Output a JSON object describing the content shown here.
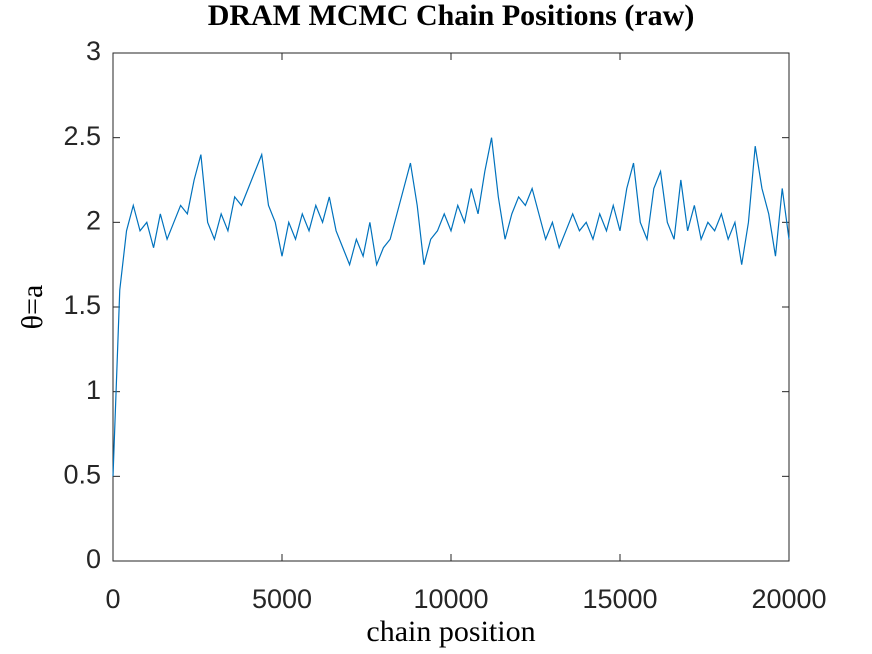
{
  "chart_data": {
    "type": "line",
    "title": "DRAM MCMC Chain Positions (raw)",
    "x_label": "chain position",
    "y_label": "θ=a",
    "x": [
      0,
      200,
      400,
      600,
      800,
      1000,
      1200,
      1400,
      1600,
      1800,
      2000,
      2200,
      2400,
      2600,
      2800,
      3000,
      3200,
      3400,
      3600,
      3800,
      4000,
      4200,
      4400,
      4600,
      4800,
      5000,
      5200,
      5400,
      5600,
      5800,
      6000,
      6200,
      6400,
      6600,
      6800,
      7000,
      7200,
      7400,
      7600,
      7800,
      8000,
      8200,
      8400,
      8600,
      8800,
      9000,
      9200,
      9400,
      9600,
      9800,
      10000,
      10200,
      10400,
      10600,
      10800,
      11000,
      11200,
      11400,
      11600,
      11800,
      12000,
      12200,
      12400,
      12600,
      12800,
      13000,
      13200,
      13400,
      13600,
      13800,
      14000,
      14200,
      14400,
      14600,
      14800,
      15000,
      15200,
      15400,
      15600,
      15800,
      16000,
      16200,
      16400,
      16600,
      16800,
      17000,
      17200,
      17400,
      17600,
      17800,
      18000,
      18200,
      18400,
      18600,
      18800,
      19000,
      19200,
      19400,
      19600,
      19800,
      20000
    ],
    "values": [
      0.5,
      1.6,
      1.95,
      2.1,
      1.95,
      2.0,
      1.85,
      2.05,
      1.9,
      2.0,
      2.1,
      2.05,
      2.25,
      2.4,
      2.0,
      1.9,
      2.05,
      1.95,
      2.15,
      2.1,
      2.2,
      2.3,
      2.4,
      2.1,
      2.0,
      1.8,
      2.0,
      1.9,
      2.05,
      1.95,
      2.1,
      2.0,
      2.15,
      1.95,
      1.85,
      1.75,
      1.9,
      1.8,
      2.0,
      1.75,
      1.85,
      1.9,
      2.05,
      2.2,
      2.35,
      2.1,
      1.75,
      1.9,
      1.95,
      2.05,
      1.95,
      2.1,
      2.0,
      2.2,
      2.05,
      2.3,
      2.5,
      2.15,
      1.9,
      2.05,
      2.15,
      2.1,
      2.2,
      2.05,
      1.9,
      2.0,
      1.85,
      1.95,
      2.05,
      1.95,
      2.0,
      1.9,
      2.05,
      1.95,
      2.1,
      1.95,
      2.2,
      2.35,
      2.0,
      1.9,
      2.2,
      2.3,
      2.0,
      1.9,
      2.25,
      1.95,
      2.1,
      1.9,
      2.0,
      1.95,
      2.05,
      1.9,
      2.0,
      1.75,
      2.0,
      2.45,
      2.2,
      2.05,
      1.8,
      2.2,
      1.9
    ],
    "color": "#0072bd",
    "xlim": [
      0,
      20000
    ],
    "ylim": [
      0,
      3
    ],
    "xticks": [
      0,
      5000,
      10000,
      15000,
      20000
    ],
    "yticks": [
      0,
      0.5,
      1,
      1.5,
      2,
      2.5,
      3
    ]
  }
}
